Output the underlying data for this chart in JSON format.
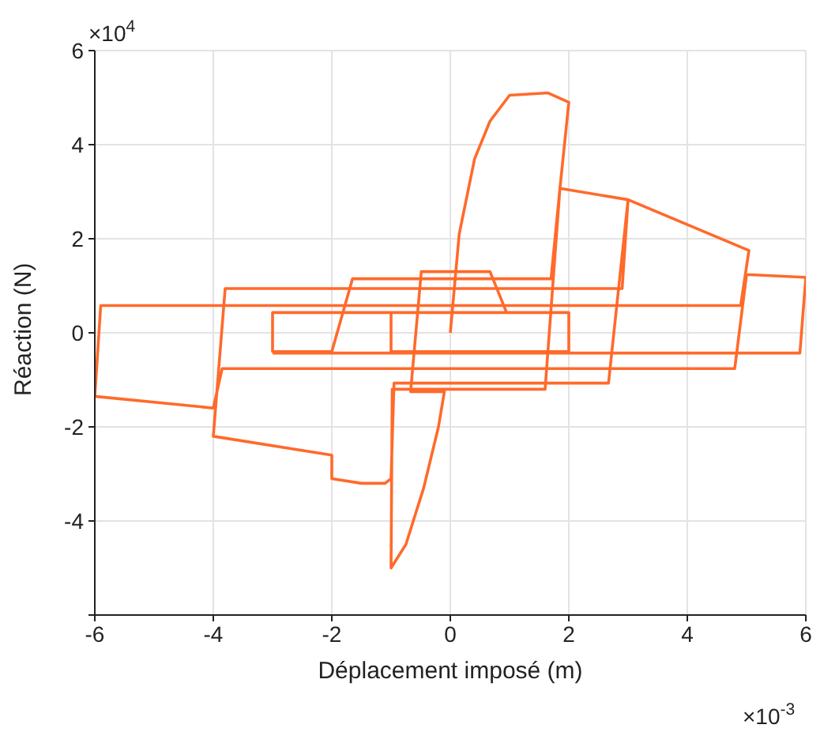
{
  "chart_data": {
    "type": "line",
    "xlabel": "Déplacement imposé (m)",
    "ylabel": "Réaction (N)",
    "annotations": [
      "×10$^{4}$",
      "×10$^{-3}$"
    ],
    "x": [
      0,
      0.15,
      0.41,
      0.67,
      1.0,
      1.65,
      2.0,
      1.85,
      1.6,
      -0.98,
      -1.0,
      -0.75,
      -0.45,
      -0.2,
      -0.1,
      -0.67,
      -0.49,
      0.67,
      0.95,
      -1.0,
      -1.0,
      2.0,
      2.0,
      -3.0,
      -3.0,
      -2.0,
      -1.65,
      1.7,
      1.85,
      3.0,
      2.9,
      -3.8,
      -4.0,
      -2.0,
      -2.0,
      -1.5,
      -1.1,
      -1.0,
      -0.95,
      2.67,
      3.0,
      5.04,
      4.9,
      -5.9,
      -6.0,
      -4.0,
      -3.85,
      4.8,
      5.0,
      6.0,
      5.9,
      -3.0
    ],
    "series": [
      {
        "color": "#ff6a2b",
        "values": [
          0,
          2.1,
          3.7,
          4.5,
          5.05,
          5.1,
          4.9,
          3.07,
          -1.2,
          -1.2,
          -5.0,
          -4.5,
          -3.3,
          -2.0,
          -1.25,
          -1.25,
          1.3,
          1.3,
          0.43,
          0.43,
          -0.4,
          -0.4,
          0.43,
          0.43,
          -0.4,
          -0.4,
          1.15,
          1.15,
          3.07,
          2.83,
          0.94,
          0.94,
          -2.2,
          -2.6,
          -3.1,
          -3.2,
          -3.2,
          -3.1,
          -1.07,
          -1.07,
          2.83,
          1.75,
          0.58,
          0.58,
          -1.35,
          -1.6,
          -0.76,
          -0.76,
          1.24,
          1.18,
          -0.43,
          -0.43
        ]
      }
    ],
    "xlim": [
      -6,
      6
    ],
    "ylim": [
      -6,
      6
    ],
    "xticks": [
      -6,
      -4,
      -2,
      0,
      2,
      4,
      6
    ],
    "yticks": [
      {
        "value": -6,
        "label": null
      },
      -4,
      -2,
      0,
      2,
      4,
      6
    ],
    "grid": true,
    "marker": "none",
    "line_style": "solid"
  }
}
